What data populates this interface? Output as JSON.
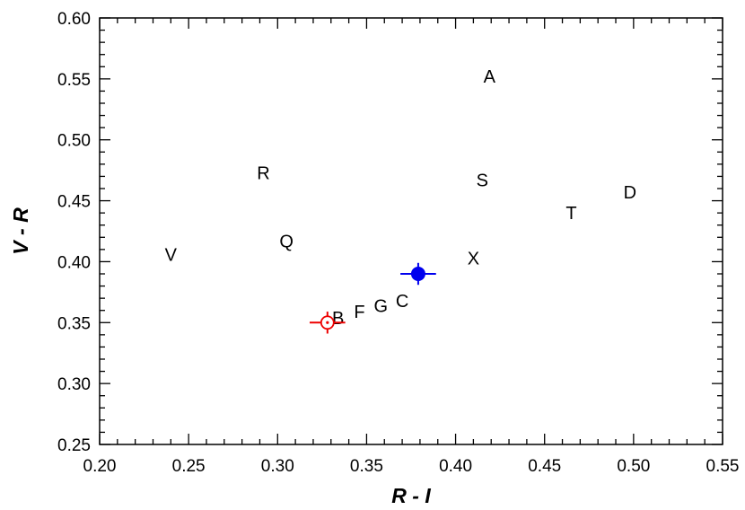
{
  "chart_data": {
    "type": "scatter",
    "xlabel": "R - I",
    "ylabel": "V - R",
    "xlim": [
      0.2,
      0.55
    ],
    "ylim": [
      0.25,
      0.6
    ],
    "x_ticks": [
      "0.20",
      "0.25",
      "0.30",
      "0.35",
      "0.40",
      "0.45",
      "0.50",
      "0.55"
    ],
    "y_ticks": [
      "0.25",
      "0.30",
      "0.35",
      "0.40",
      "0.45",
      "0.50",
      "0.55",
      "0.60"
    ],
    "grid": false,
    "letter_points": [
      {
        "label": "A",
        "x": 0.419,
        "y": 0.552
      },
      {
        "label": "R",
        "x": 0.292,
        "y": 0.473
      },
      {
        "label": "S",
        "x": 0.415,
        "y": 0.467
      },
      {
        "label": "D",
        "x": 0.498,
        "y": 0.457
      },
      {
        "label": "T",
        "x": 0.465,
        "y": 0.44
      },
      {
        "label": "Q",
        "x": 0.305,
        "y": 0.417
      },
      {
        "label": "V",
        "x": 0.24,
        "y": 0.406
      },
      {
        "label": "X",
        "x": 0.41,
        "y": 0.403
      },
      {
        "label": "C",
        "x": 0.37,
        "y": 0.368
      },
      {
        "label": "G",
        "x": 0.358,
        "y": 0.364
      },
      {
        "label": "F",
        "x": 0.346,
        "y": 0.359
      },
      {
        "label": "B",
        "x": 0.334,
        "y": 0.354
      }
    ],
    "marked_points": [
      {
        "x": 0.379,
        "y": 0.39,
        "xerr": 0.01,
        "yerr": 0.009,
        "marker": "filled-circle",
        "color": "#0000ee"
      },
      {
        "x": 0.328,
        "y": 0.35,
        "xerr": 0.01,
        "yerr": 0.009,
        "marker": "circle-dot",
        "color": "#ee0000"
      }
    ]
  }
}
